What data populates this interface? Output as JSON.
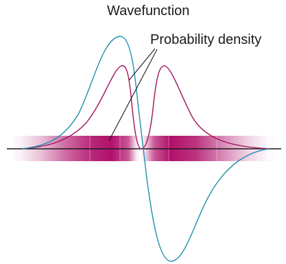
{
  "labels": {
    "wavefunction": "Wavefunction",
    "probability_density": "Probability density"
  },
  "colors": {
    "wavefunction_curve": "#1e8fb0",
    "density_curve": "#a0125f",
    "density_band": "#b0106a",
    "axis": "#1a1a1a",
    "leader_lines": "#1a1a1a"
  }
}
